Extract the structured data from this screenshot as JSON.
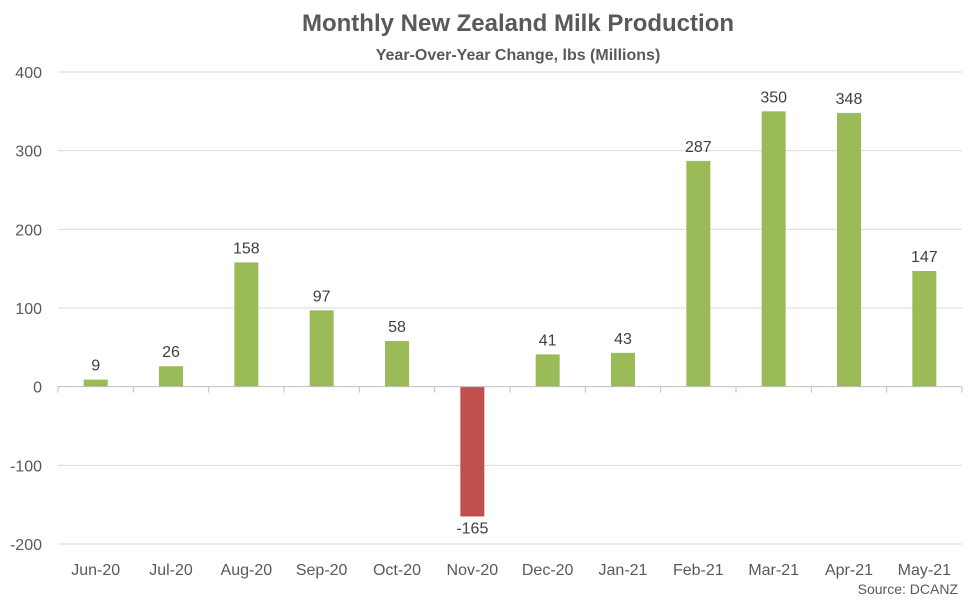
{
  "chart_data": {
    "type": "bar",
    "title": "Monthly New Zealand Milk Production",
    "subtitle": "Year-Over-Year Change, lbs (Millions)",
    "categories": [
      "Jun-20",
      "Jul-20",
      "Aug-20",
      "Sep-20",
      "Oct-20",
      "Nov-20",
      "Dec-20",
      "Jan-21",
      "Feb-21",
      "Mar-21",
      "Apr-21",
      "May-21"
    ],
    "values": [
      9,
      26,
      158,
      97,
      58,
      -165,
      41,
      43,
      287,
      350,
      348,
      147
    ],
    "ylim": [
      -200,
      400
    ],
    "yticks": [
      -200,
      -100,
      0,
      100,
      200,
      300,
      400
    ],
    "grid": true,
    "colors": {
      "positive": "#9BBB59",
      "negative": "#C0504D",
      "grid": "#D9D9D9",
      "axis": "#BFBFBF"
    },
    "source": "Source: DCANZ"
  }
}
